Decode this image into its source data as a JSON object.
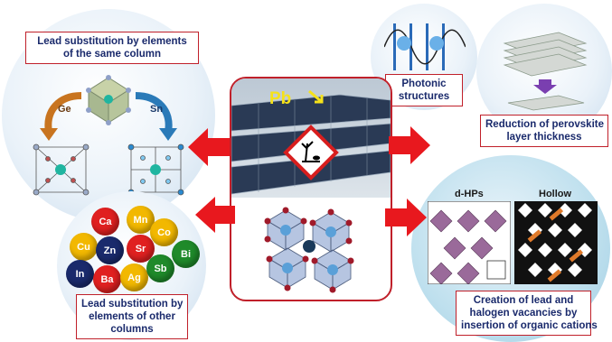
{
  "top_left": {
    "lines": [
      "Lead substitution by elements",
      "of the same column"
    ],
    "arrow_left": "Ge",
    "arrow_right": "Sn"
  },
  "bottom_left": {
    "lines": [
      "Lead substitution by",
      "elements of other",
      "columns"
    ],
    "elements": [
      "Ca",
      "Mn",
      "Cu",
      "Zn",
      "Sr",
      "Co",
      "In",
      "Ba",
      "Ag",
      "Sb",
      "Bi"
    ]
  },
  "top_right": {
    "photonic_lines": [
      "Photonic",
      "structures"
    ],
    "reduction_lines": [
      "Reduction of perovskite",
      "layer thickness"
    ]
  },
  "bottom_right": {
    "dhps": "d-HPs",
    "hollow": "Hollow",
    "lines": [
      "Creation of lead and",
      "halogen vacancies by",
      "insertion of organic cations"
    ]
  },
  "center": {
    "element": "Pb"
  },
  "colors": {
    "accent_red": "#e8181e",
    "frame_red": "#c0202a",
    "label_text": "#1a2a6c"
  }
}
